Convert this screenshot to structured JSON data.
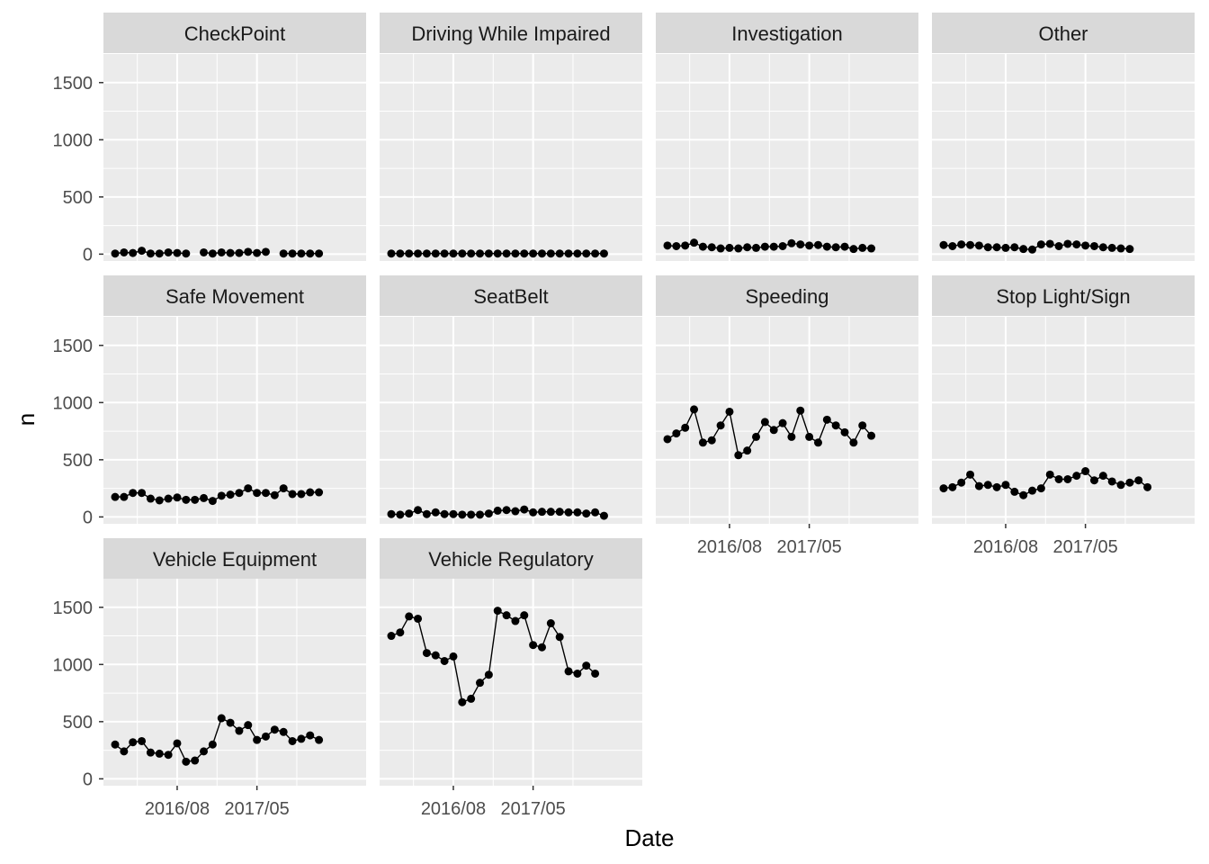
{
  "chart_data": {
    "type": "line",
    "facet": "wrap",
    "xlabel": "Date",
    "ylabel": "n",
    "ylim": [
      -60,
      1750
    ],
    "x_start": "2016-01",
    "months": 28,
    "y_ticks": [
      0,
      500,
      1000,
      1500
    ],
    "x_ticks": [
      {
        "label": "2016/08",
        "index": 7
      },
      {
        "label": "2017/05",
        "index": 16
      }
    ],
    "colors": {
      "panel": "#ebebeb",
      "strip": "#d9d9d9",
      "grid": "#ffffff",
      "line": "#000000",
      "point": "#000000"
    },
    "panels": [
      {
        "name": "CheckPoint",
        "values": [
          5,
          15,
          10,
          30,
          5,
          5,
          15,
          10,
          5,
          null,
          15,
          5,
          15,
          10,
          10,
          20,
          10,
          20,
          null,
          5,
          5,
          5,
          5,
          5
        ]
      },
      {
        "name": "Driving While Impaired",
        "values": [
          5,
          5,
          5,
          5,
          5,
          5,
          5,
          5,
          5,
          5,
          5,
          5,
          5,
          5,
          5,
          5,
          5,
          5,
          5,
          5,
          5,
          5,
          5,
          5,
          5
        ]
      },
      {
        "name": "Investigation",
        "values": [
          75,
          70,
          75,
          100,
          65,
          60,
          50,
          55,
          50,
          60,
          55,
          65,
          65,
          70,
          95,
          85,
          75,
          80,
          65,
          60,
          65,
          45,
          55,
          50
        ]
      },
      {
        "name": "Other",
        "values": [
          80,
          70,
          85,
          80,
          75,
          60,
          60,
          55,
          60,
          45,
          40,
          85,
          90,
          70,
          90,
          85,
          75,
          70,
          60,
          55,
          50,
          45
        ]
      },
      {
        "name": "Safe Movement",
        "values": [
          175,
          175,
          210,
          210,
          160,
          145,
          160,
          170,
          150,
          150,
          165,
          140,
          185,
          195,
          210,
          250,
          210,
          210,
          190,
          250,
          200,
          200,
          215,
          215
        ]
      },
      {
        "name": "SeatBelt",
        "values": [
          25,
          20,
          30,
          60,
          25,
          40,
          25,
          25,
          20,
          20,
          20,
          30,
          55,
          60,
          50,
          65,
          40,
          45,
          45,
          45,
          40,
          40,
          30,
          40,
          10
        ]
      },
      {
        "name": "Speeding",
        "values": [
          680,
          730,
          780,
          940,
          650,
          670,
          800,
          920,
          540,
          580,
          700,
          830,
          760,
          820,
          700,
          930,
          700,
          650,
          850,
          800,
          740,
          650,
          800,
          710
        ]
      },
      {
        "name": "Stop Light/Sign",
        "values": [
          250,
          260,
          300,
          370,
          270,
          280,
          260,
          280,
          220,
          190,
          230,
          250,
          370,
          330,
          330,
          360,
          400,
          320,
          360,
          310,
          280,
          300,
          320,
          260
        ]
      },
      {
        "name": "Vehicle Equipment",
        "values": [
          300,
          240,
          320,
          330,
          230,
          220,
          210,
          310,
          150,
          160,
          240,
          300,
          530,
          490,
          420,
          470,
          340,
          370,
          430,
          410,
          330,
          350,
          380,
          340
        ]
      },
      {
        "name": "Vehicle Regulatory",
        "values": [
          1250,
          1280,
          1420,
          1400,
          1100,
          1080,
          1030,
          1070,
          670,
          700,
          840,
          910,
          1470,
          1430,
          1380,
          1430,
          1170,
          1150,
          1360,
          1240,
          940,
          920,
          990,
          920
        ]
      }
    ]
  }
}
